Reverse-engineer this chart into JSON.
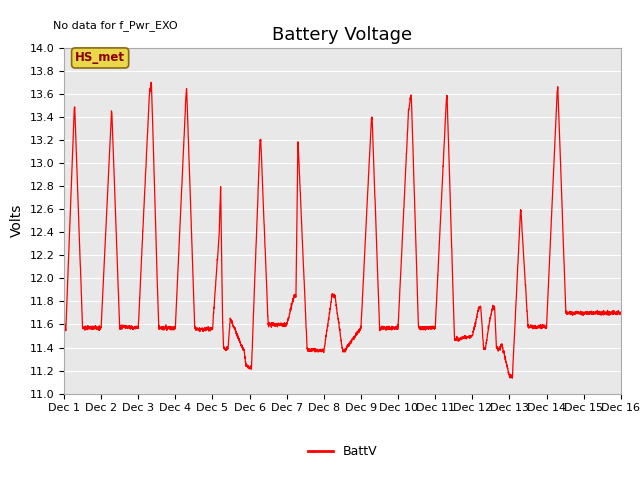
{
  "title": "Battery Voltage",
  "no_data_text": "No data for f_Pwr_EXO",
  "ylabel": "Volts",
  "ylim": [
    11.0,
    14.0
  ],
  "yticks": [
    11.0,
    11.2,
    11.4,
    11.6,
    11.8,
    12.0,
    12.2,
    12.4,
    12.6,
    12.8,
    13.0,
    13.2,
    13.4,
    13.6,
    13.8,
    14.0
  ],
  "xtick_labels": [
    "Dec 1",
    "Dec 2",
    "Dec 3",
    "Dec 4",
    "Dec 5",
    "Dec 6",
    "Dec 7",
    "Dec 8",
    "Dec 9",
    "Dec 10",
    "Dec 11",
    "Dec 12",
    "Dec 13",
    "Dec 14",
    "Dec 15",
    "Dec 16"
  ],
  "legend_label": "BattV",
  "legend_label_hs": "HS_met",
  "line_color": "#ff0000",
  "bg_color": "#e8e8e8",
  "title_fontsize": 13,
  "axis_label_fontsize": 10,
  "tick_fontsize": 8,
  "keypoints": [
    [
      0.0,
      11.62
    ],
    [
      0.05,
      11.55
    ],
    [
      0.28,
      13.5
    ],
    [
      0.29,
      13.48
    ],
    [
      0.5,
      11.57
    ],
    [
      0.55,
      11.57
    ],
    [
      1.0,
      11.57
    ],
    [
      1.28,
      13.45
    ],
    [
      1.29,
      13.43
    ],
    [
      1.5,
      11.57
    ],
    [
      1.55,
      11.58
    ],
    [
      2.0,
      11.57
    ],
    [
      2.3,
      13.6
    ],
    [
      2.35,
      13.7
    ],
    [
      2.36,
      13.65
    ],
    [
      2.55,
      11.57
    ],
    [
      2.6,
      11.57
    ],
    [
      3.0,
      11.57
    ],
    [
      3.28,
      13.55
    ],
    [
      3.3,
      13.65
    ],
    [
      3.31,
      13.6
    ],
    [
      3.52,
      11.57
    ],
    [
      3.56,
      11.56
    ],
    [
      4.0,
      11.56
    ],
    [
      4.18,
      12.38
    ],
    [
      4.22,
      12.8
    ],
    [
      4.27,
      11.65
    ],
    [
      4.3,
      11.4
    ],
    [
      4.35,
      11.38
    ],
    [
      4.42,
      11.4
    ],
    [
      4.48,
      11.65
    ],
    [
      4.8,
      11.4
    ],
    [
      4.85,
      11.38
    ],
    [
      4.9,
      11.25
    ],
    [
      5.0,
      11.22
    ],
    [
      5.05,
      11.22
    ],
    [
      5.28,
      13.2
    ],
    [
      5.3,
      13.2
    ],
    [
      5.5,
      11.6
    ],
    [
      5.55,
      11.6
    ],
    [
      6.0,
      11.6
    ],
    [
      6.2,
      11.85
    ],
    [
      6.25,
      11.85
    ],
    [
      6.3,
      13.2
    ],
    [
      6.31,
      13.15
    ],
    [
      6.52,
      11.6
    ],
    [
      6.55,
      11.38
    ],
    [
      7.0,
      11.37
    ],
    [
      7.22,
      11.85
    ],
    [
      7.3,
      11.85
    ],
    [
      7.5,
      11.38
    ],
    [
      7.55,
      11.37
    ],
    [
      8.0,
      11.57
    ],
    [
      8.28,
      13.38
    ],
    [
      8.3,
      13.4
    ],
    [
      8.5,
      11.57
    ],
    [
      8.55,
      11.57
    ],
    [
      9.0,
      11.57
    ],
    [
      9.28,
      13.45
    ],
    [
      9.35,
      13.6
    ],
    [
      9.36,
      13.55
    ],
    [
      9.55,
      11.57
    ],
    [
      9.6,
      11.57
    ],
    [
      10.0,
      11.57
    ],
    [
      10.3,
      13.55
    ],
    [
      10.32,
      13.58
    ],
    [
      10.52,
      11.47
    ],
    [
      10.56,
      11.47
    ],
    [
      11.0,
      11.5
    ],
    [
      11.18,
      11.75
    ],
    [
      11.23,
      11.75
    ],
    [
      11.3,
      11.4
    ],
    [
      11.35,
      11.38
    ],
    [
      11.45,
      11.6
    ],
    [
      11.55,
      11.75
    ],
    [
      11.6,
      11.75
    ],
    [
      11.65,
      11.4
    ],
    [
      11.7,
      11.38
    ],
    [
      11.8,
      11.42
    ],
    [
      12.0,
      11.15
    ],
    [
      12.05,
      11.15
    ],
    [
      12.08,
      11.15
    ],
    [
      12.3,
      12.6
    ],
    [
      12.31,
      12.58
    ],
    [
      12.5,
      11.58
    ],
    [
      12.55,
      11.58
    ],
    [
      13.0,
      11.58
    ],
    [
      13.28,
      13.6
    ],
    [
      13.3,
      13.65
    ],
    [
      13.31,
      13.6
    ],
    [
      13.52,
      11.7
    ],
    [
      14.0,
      11.7
    ],
    [
      14.5,
      11.7
    ],
    [
      15.0,
      11.7
    ]
  ]
}
